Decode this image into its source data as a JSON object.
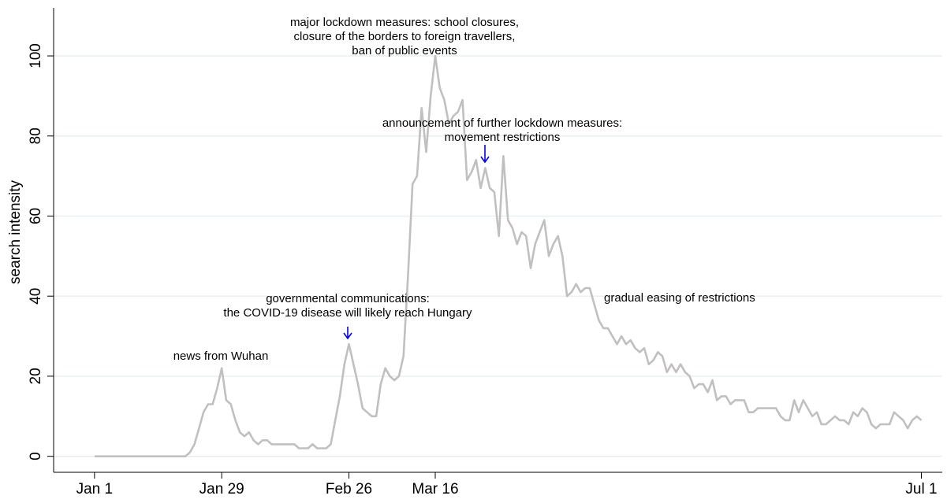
{
  "chart_data": {
    "type": "line",
    "y_label": "search intensity",
    "x": [
      0,
      1,
      2,
      3,
      4,
      5,
      6,
      7,
      8,
      9,
      10,
      11,
      12,
      13,
      14,
      15,
      16,
      17,
      18,
      19,
      20,
      21,
      22,
      23,
      24,
      25,
      26,
      27,
      28,
      29,
      30,
      31,
      32,
      33,
      34,
      35,
      36,
      37,
      38,
      39,
      40,
      41,
      42,
      43,
      44,
      45,
      46,
      47,
      48,
      49,
      50,
      51,
      52,
      53,
      54,
      55,
      56,
      57,
      58,
      59,
      60,
      61,
      62,
      63,
      64,
      65,
      66,
      67,
      68,
      69,
      70,
      71,
      72,
      73,
      74,
      75,
      76,
      77,
      78,
      79,
      80,
      81,
      82,
      83,
      84,
      85,
      86,
      87,
      88,
      89,
      90,
      91,
      92,
      93,
      94,
      95,
      96,
      97,
      98,
      99,
      100,
      101,
      102,
      103,
      104,
      105,
      106,
      107,
      108,
      109,
      110,
      111,
      112,
      113,
      114,
      115,
      116,
      117,
      118,
      119,
      120,
      121,
      122,
      123,
      124,
      125,
      126,
      127,
      128,
      129,
      130,
      131,
      132,
      133,
      134,
      135,
      136,
      137,
      138,
      139,
      140,
      141,
      142,
      143,
      144,
      145,
      146,
      147,
      148,
      149,
      150,
      151,
      152,
      153,
      154,
      155,
      156,
      157,
      158,
      159,
      160,
      161,
      162,
      163,
      164,
      165,
      166,
      167,
      168,
      169,
      170,
      171,
      172,
      173,
      174,
      175,
      176,
      177,
      178,
      179,
      180,
      181,
      182
    ],
    "values": [
      0,
      0,
      0,
      0,
      0,
      0,
      0,
      0,
      0,
      0,
      0,
      0,
      0,
      0,
      0,
      0,
      0,
      0,
      0,
      0,
      0,
      1,
      3,
      7,
      11,
      13,
      13,
      17,
      22,
      14,
      13,
      9,
      6,
      5,
      6,
      4,
      3,
      4,
      4,
      3,
      3,
      3,
      3,
      3,
      3,
      2,
      2,
      2,
      3,
      2,
      2,
      2,
      3,
      9,
      15,
      23,
      28,
      23,
      18,
      12,
      11,
      10,
      10,
      18,
      22,
      20,
      19,
      20,
      25,
      45,
      68,
      70,
      87,
      76,
      90,
      100,
      92,
      89,
      83,
      85,
      86,
      89,
      69,
      71,
      74,
      67,
      72,
      67,
      66,
      55,
      75,
      59,
      57,
      53,
      56,
      55,
      47,
      53,
      56,
      59,
      50,
      53,
      55,
      50,
      40,
      41,
      43,
      41,
      42,
      42,
      38,
      34,
      32,
      32,
      30,
      28,
      30,
      28,
      29,
      27,
      26,
      27,
      23,
      24,
      26,
      25,
      21,
      23,
      21,
      23,
      21,
      20,
      17,
      18,
      18,
      16,
      19,
      14,
      15,
      15,
      13,
      14,
      14,
      14,
      11,
      11,
      12,
      12,
      12,
      12,
      12,
      10,
      9,
      9,
      14,
      11,
      14,
      12,
      10,
      11,
      8,
      8,
      9,
      10,
      9,
      9,
      8,
      11,
      10,
      12,
      11,
      8,
      7,
      8,
      8,
      8,
      11,
      10,
      9,
      7,
      9,
      10,
      9
    ],
    "color": "#c0c0c0",
    "xlim": [
      -9,
      186.6
    ],
    "xticks": [
      {
        "value": 0,
        "label": "Jan 1"
      },
      {
        "value": 28,
        "label": "Jan 29"
      },
      {
        "value": 56,
        "label": "Feb 26"
      },
      {
        "value": 75,
        "label": "Mar 16"
      },
      {
        "value": 182,
        "label": "Jul 1"
      }
    ],
    "ylim": [
      -4,
      112
    ],
    "yticks": [
      0,
      20,
      40,
      60,
      80,
      100
    ],
    "grid": true,
    "annotations": [
      [
        "news from Wuhan"
      ],
      [
        "governmental communications:",
        "the COVID-19 disease will likely reach Hungary"
      ],
      [
        "major lockdown measures: school closures,",
        "closure of the borders to foreign travellers,",
        "ban of public events"
      ],
      [
        "announcement of further lockdown measures:",
        "movement restrictions"
      ],
      [
        "gradual easing of restrictions"
      ]
    ]
  }
}
